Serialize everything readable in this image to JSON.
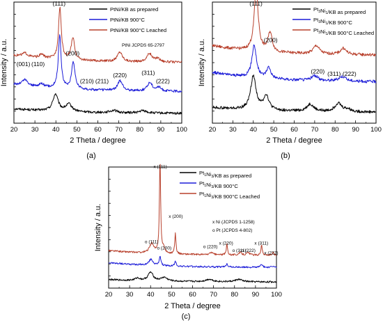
{
  "chart_data": [
    {
      "type": "line",
      "panel_label": "(a)",
      "xlabel": "2 Theta / degree",
      "ylabel": "Intensity / a.u.",
      "xlim": [
        20,
        100
      ],
      "x_ticks": [
        20,
        30,
        40,
        50,
        60,
        70,
        80,
        90,
        100
      ],
      "reference": "PtNi JCPDS 65-2797",
      "legend_position": "top-right",
      "series": [
        {
          "name": "PtNi/KB as prepared",
          "color": "#000000",
          "peaks": [
            {
              "x": 39.8,
              "h": 0.14,
              "w": 1.5
            },
            {
              "x": 46.2,
              "h": 0.06,
              "w": 1.8
            },
            {
              "x": 67.5,
              "h": 0.02,
              "w": 2
            },
            {
              "x": 81.5,
              "h": 0.02,
              "w": 2
            }
          ]
        },
        {
          "name": "PtNi/KB 900°C",
          "color": "#1c1cd8",
          "peaks": [
            {
              "x": 41.8,
              "h": 0.44,
              "w": 0.8
            },
            {
              "x": 48.3,
              "h": 0.22,
              "w": 1.0
            },
            {
              "x": 25.2,
              "h": 0.05,
              "w": 1.6
            },
            {
              "x": 33.2,
              "h": 0.03,
              "w": 1.3
            },
            {
              "x": 70.6,
              "h": 0.08,
              "w": 1.4
            },
            {
              "x": 84.8,
              "h": 0.07,
              "w": 1.4
            },
            {
              "x": 89.0,
              "h": 0.03,
              "w": 1.4
            }
          ]
        },
        {
          "name": "PtNi/KB 900°C Leached",
          "color": "#b8402c",
          "peaks": [
            {
              "x": 41.9,
              "h": 0.43,
              "w": 0.8
            },
            {
              "x": 48.1,
              "h": 0.18,
              "w": 1.0
            },
            {
              "x": 25.2,
              "h": 0.03,
              "w": 1.6
            },
            {
              "x": 33.2,
              "h": 0.03,
              "w": 1.3
            },
            {
              "x": 70.5,
              "h": 0.08,
              "w": 1.4
            },
            {
              "x": 84.6,
              "h": 0.07,
              "w": 1.4
            },
            {
              "x": 88.5,
              "h": 0.03,
              "w": 1.4
            }
          ]
        }
      ],
      "annotations": [
        {
          "text": "(111)",
          "x": 41.5,
          "y": 0.97
        },
        {
          "text": "(200)",
          "x": 48.0,
          "y": 0.56
        },
        {
          "text": "(001)",
          "x": 24.5,
          "y": 0.47
        },
        {
          "text": "(110)",
          "x": 31.5,
          "y": 0.47
        },
        {
          "text": "(210)",
          "x": 54.8,
          "y": 0.33
        },
        {
          "text": "(211)",
          "x": 62.0,
          "y": 0.33
        },
        {
          "text": "(220)",
          "x": 70.5,
          "y": 0.38
        },
        {
          "text": "(311)",
          "x": 84.0,
          "y": 0.4
        },
        {
          "text": "(222)",
          "x": 91.0,
          "y": 0.33
        }
      ]
    },
    {
      "type": "line",
      "panel_label": "(b)",
      "xlabel": "2 Theta / degree",
      "ylabel": "Intensity / a.u.",
      "xlim": [
        20,
        100
      ],
      "x_ticks": [
        20,
        30,
        40,
        50,
        60,
        70,
        80,
        90,
        100
      ],
      "legend_position": "top-right",
      "series": [
        {
          "name": "Pt3Ni1/KB as prepared",
          "color": "#000000",
          "peaks": [
            {
              "x": 40.0,
              "h": 0.28,
              "w": 1.6
            },
            {
              "x": 46.3,
              "h": 0.12,
              "w": 1.6
            },
            {
              "x": 67.8,
              "h": 0.06,
              "w": 2.0
            },
            {
              "x": 81.5,
              "h": 0.07,
              "w": 2.0
            },
            {
              "x": 86.0,
              "h": 0.02,
              "w": 2.0
            }
          ]
        },
        {
          "name": "Pt3Ni1/KB 900°C",
          "color": "#1c1cd8",
          "peaks": [
            {
              "x": 40.4,
              "h": 0.27,
              "w": 1.3
            },
            {
              "x": 47.5,
              "h": 0.09,
              "w": 1.3
            },
            {
              "x": 70.0,
              "h": 0.04,
              "w": 2.0
            },
            {
              "x": 83.5,
              "h": 0.04,
              "w": 2.0
            }
          ]
        },
        {
          "name": "Pt3Ni1/KB 900°C Leached",
          "color": "#b8402c",
          "peaks": [
            {
              "x": 41.4,
              "h": 0.51,
              "w": 1.2
            },
            {
              "x": 48.2,
              "h": 0.16,
              "w": 1.2
            },
            {
              "x": 70.8,
              "h": 0.07,
              "w": 1.8
            },
            {
              "x": 84.0,
              "h": 0.05,
              "w": 1.8
            }
          ]
        }
      ],
      "annotations": [
        {
          "text": "(111)",
          "x": 41.3,
          "y": 0.97
        },
        {
          "text": "(200)",
          "x": 48.5,
          "y": 0.67
        },
        {
          "text": "(220)",
          "x": 71.5,
          "y": 0.41
        },
        {
          "text": "(311)",
          "x": 79.5,
          "y": 0.39
        },
        {
          "text": "(222)",
          "x": 87.0,
          "y": 0.39
        }
      ]
    },
    {
      "type": "line",
      "panel_label": "(c)",
      "xlabel": "2 Theta / degree",
      "ylabel": "Intensity / a.u.",
      "xlim": [
        20,
        100
      ],
      "x_ticks": [
        20,
        30,
        40,
        50,
        60,
        70,
        80,
        90,
        100
      ],
      "legend_position": "top-right",
      "reference_ni": "x Ni (JCPDS 1-1258)",
      "reference_pt": "o Pt (JCPDS 4-802)",
      "series": [
        {
          "name": "Pt1Ni3/KB as prepared",
          "color": "#000000",
          "peaks": [
            {
              "x": 40.0,
              "h": 0.07,
              "w": 1.5
            },
            {
              "x": 46.5,
              "h": 0.03,
              "w": 1.8
            },
            {
              "x": 33.8,
              "h": 0.02,
              "w": 1.4
            },
            {
              "x": 68.0,
              "h": 0.02,
              "w": 2.0
            },
            {
              "x": 82.0,
              "h": 0.02,
              "w": 2.0
            }
          ]
        },
        {
          "name": "Pt1Ni3/KB 900°C",
          "color": "#1c1cd8",
          "peaks": [
            {
              "x": 40.2,
              "h": 0.05,
              "w": 1.2
            },
            {
              "x": 44.5,
              "h": 0.08,
              "w": 0.45
            },
            {
              "x": 51.8,
              "h": 0.04,
              "w": 0.45
            },
            {
              "x": 76.4,
              "h": 0.03,
              "w": 0.45
            },
            {
              "x": 92.9,
              "h": 0.03,
              "w": 0.45
            },
            {
              "x": 98.4,
              "h": 0.01,
              "w": 0.45
            }
          ]
        },
        {
          "name": "Pt1Ni3/KB 900°C Leached",
          "color": "#b8402c",
          "peaks": [
            {
              "x": 40.5,
              "h": 0.08,
              "w": 1.2
            },
            {
              "x": 44.5,
              "h": 0.78,
              "w": 0.35
            },
            {
              "x": 46.3,
              "h": 0.04,
              "w": 0.7
            },
            {
              "x": 51.8,
              "h": 0.17,
              "w": 0.35
            },
            {
              "x": 69.0,
              "h": 0.02,
              "w": 0.8
            },
            {
              "x": 76.4,
              "h": 0.09,
              "w": 0.35
            },
            {
              "x": 82.8,
              "h": 0.02,
              "w": 0.8
            },
            {
              "x": 86.5,
              "h": 0.02,
              "w": 0.8
            },
            {
              "x": 92.9,
              "h": 0.09,
              "w": 0.35
            },
            {
              "x": 98.4,
              "h": 0.02,
              "w": 0.35
            }
          ]
        }
      ],
      "annotations": [
        {
          "text": "x (111)",
          "x": 44.6,
          "y": 0.99
        },
        {
          "text": "x (200)",
          "x": 52.0,
          "y": 0.58
        },
        {
          "text": "o (111)",
          "x": 40.5,
          "y": 0.37
        },
        {
          "text": "o (200)",
          "x": 46.5,
          "y": 0.32
        },
        {
          "text": "o (220)",
          "x": 68.5,
          "y": 0.33
        },
        {
          "text": "x (220)",
          "x": 76.0,
          "y": 0.36
        },
        {
          "text": "o (311)",
          "x": 82.3,
          "y": 0.3
        },
        {
          "text": "o (222)",
          "x": 86.6,
          "y": 0.3
        },
        {
          "text": "x (311)",
          "x": 92.8,
          "y": 0.36
        },
        {
          "text": "x (222)",
          "x": 97.5,
          "y": 0.28
        }
      ]
    }
  ]
}
